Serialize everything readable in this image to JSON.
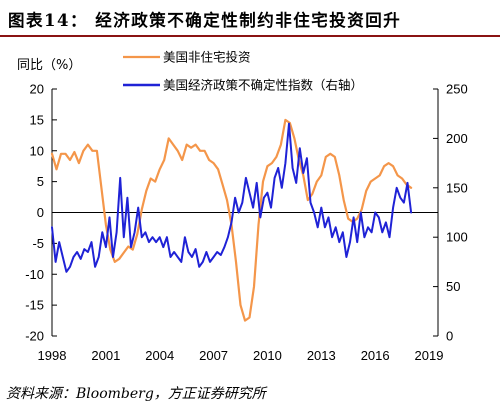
{
  "header": {
    "title": "图表14：  经济政策不确定性制约非住宅投资回升"
  },
  "source": "资料来源：Bloomberg，方正证券研究所",
  "chart_data": {
    "type": "line",
    "ylabel_left": "同比（%）",
    "y_left": {
      "ylim": [
        -20,
        20
      ],
      "ticks": [
        "-20",
        "-15",
        "-10",
        "-5",
        "0",
        "5",
        "10",
        "15",
        "20"
      ]
    },
    "y_right": {
      "ylim": [
        0,
        250
      ],
      "ticks": [
        "0",
        "50",
        "100",
        "150",
        "200",
        "250"
      ]
    },
    "x": {
      "xlim": [
        1998,
        2019.5
      ],
      "ticks": [
        "1998",
        "2001",
        "2004",
        "2007",
        "2010",
        "2013",
        "2016",
        "2019"
      ]
    },
    "legend_position": "top",
    "series": [
      {
        "name": "美国非住宅投资",
        "axis": "left",
        "color": "#f4964a",
        "points": [
          [
            1998.0,
            9.5
          ],
          [
            1998.25,
            7.0
          ],
          [
            1998.5,
            9.5
          ],
          [
            1998.75,
            9.5
          ],
          [
            1999.0,
            8.5
          ],
          [
            1999.25,
            9.8
          ],
          [
            1999.5,
            8.0
          ],
          [
            1999.75,
            10.0
          ],
          [
            2000.0,
            11.0
          ],
          [
            2000.25,
            10.0
          ],
          [
            2000.5,
            10.0
          ],
          [
            2000.75,
            4.0
          ],
          [
            2001.0,
            -2.0
          ],
          [
            2001.25,
            -6.0
          ],
          [
            2001.5,
            -8.0
          ],
          [
            2001.75,
            -7.5
          ],
          [
            2002.0,
            -6.5
          ],
          [
            2002.25,
            -5.5
          ],
          [
            2002.5,
            -6.0
          ],
          [
            2002.75,
            -3.5
          ],
          [
            2003.0,
            0.5
          ],
          [
            2003.25,
            3.5
          ],
          [
            2003.5,
            5.5
          ],
          [
            2003.75,
            5.0
          ],
          [
            2004.0,
            7.0
          ],
          [
            2004.25,
            8.5
          ],
          [
            2004.5,
            12.0
          ],
          [
            2004.75,
            11.0
          ],
          [
            2005.0,
            10.0
          ],
          [
            2005.25,
            8.5
          ],
          [
            2005.5,
            11.0
          ],
          [
            2005.75,
            10.5
          ],
          [
            2006.0,
            11.0
          ],
          [
            2006.25,
            10.0
          ],
          [
            2006.5,
            10.0
          ],
          [
            2006.75,
            8.5
          ],
          [
            2007.0,
            8.0
          ],
          [
            2007.25,
            7.0
          ],
          [
            2007.5,
            4.5
          ],
          [
            2007.75,
            2.0
          ],
          [
            2008.0,
            -2.0
          ],
          [
            2008.25,
            -8.0
          ],
          [
            2008.5,
            -15.0
          ],
          [
            2008.75,
            -17.5
          ],
          [
            2009.0,
            -17.0
          ],
          [
            2009.25,
            -12.0
          ],
          [
            2009.5,
            -2.0
          ],
          [
            2009.75,
            5.0
          ],
          [
            2010.0,
            7.5
          ],
          [
            2010.25,
            8.0
          ],
          [
            2010.5,
            9.0
          ],
          [
            2010.75,
            11.0
          ],
          [
            2011.0,
            15.0
          ],
          [
            2011.25,
            14.5
          ],
          [
            2011.5,
            12.0
          ],
          [
            2011.75,
            8.5
          ],
          [
            2012.0,
            6.0
          ],
          [
            2012.25,
            2.0
          ],
          [
            2012.5,
            3.0
          ],
          [
            2012.75,
            5.0
          ],
          [
            2013.0,
            6.0
          ],
          [
            2013.25,
            9.0
          ],
          [
            2013.5,
            9.5
          ],
          [
            2013.75,
            9.0
          ],
          [
            2014.0,
            6.0
          ],
          [
            2014.25,
            2.0
          ],
          [
            2014.5,
            -1.0
          ],
          [
            2014.75,
            -1.5
          ],
          [
            2015.0,
            -1.0
          ],
          [
            2015.25,
            0.5
          ],
          [
            2015.5,
            3.5
          ],
          [
            2015.75,
            5.0
          ],
          [
            2016.0,
            5.5
          ],
          [
            2016.25,
            6.0
          ],
          [
            2016.5,
            7.5
          ],
          [
            2016.75,
            8.0
          ],
          [
            2017.0,
            7.5
          ],
          [
            2017.25,
            6.0
          ],
          [
            2017.5,
            5.5
          ],
          [
            2017.75,
            4.5
          ],
          [
            2018.0,
            4.0
          ]
        ]
      },
      {
        "name": "美国经济政策不确定性指数（右轴）",
        "axis": "right",
        "color": "#1f22d6",
        "points": [
          [
            1998.0,
            110
          ],
          [
            1998.2,
            75
          ],
          [
            1998.4,
            95
          ],
          [
            1998.6,
            80
          ],
          [
            1998.8,
            65
          ],
          [
            1999.0,
            70
          ],
          [
            1999.2,
            80
          ],
          [
            1999.4,
            85
          ],
          [
            1999.6,
            78
          ],
          [
            1999.8,
            88
          ],
          [
            2000.0,
            85
          ],
          [
            2000.2,
            95
          ],
          [
            2000.4,
            70
          ],
          [
            2000.6,
            80
          ],
          [
            2000.8,
            105
          ],
          [
            2001.0,
            90
          ],
          [
            2001.2,
            120
          ],
          [
            2001.4,
            80
          ],
          [
            2001.6,
            105
          ],
          [
            2001.8,
            160
          ],
          [
            2002.0,
            100
          ],
          [
            2002.2,
            140
          ],
          [
            2002.4,
            90
          ],
          [
            2002.6,
            105
          ],
          [
            2002.8,
            130
          ],
          [
            2003.0,
            100
          ],
          [
            2003.2,
            105
          ],
          [
            2003.4,
            95
          ],
          [
            2003.6,
            100
          ],
          [
            2003.8,
            95
          ],
          [
            2004.0,
            100
          ],
          [
            2004.2,
            90
          ],
          [
            2004.4,
            100
          ],
          [
            2004.6,
            80
          ],
          [
            2004.8,
            85
          ],
          [
            2005.0,
            80
          ],
          [
            2005.2,
            75
          ],
          [
            2005.4,
            100
          ],
          [
            2005.6,
            85
          ],
          [
            2005.8,
            80
          ],
          [
            2006.0,
            88
          ],
          [
            2006.2,
            70
          ],
          [
            2006.4,
            75
          ],
          [
            2006.6,
            85
          ],
          [
            2006.8,
            75
          ],
          [
            2007.0,
            80
          ],
          [
            2007.2,
            85
          ],
          [
            2007.4,
            82
          ],
          [
            2007.6,
            90
          ],
          [
            2007.8,
            100
          ],
          [
            2008.0,
            115
          ],
          [
            2008.2,
            140
          ],
          [
            2008.4,
            125
          ],
          [
            2008.6,
            135
          ],
          [
            2008.8,
            160
          ],
          [
            2009.0,
            145
          ],
          [
            2009.2,
            130
          ],
          [
            2009.4,
            155
          ],
          [
            2009.6,
            120
          ],
          [
            2009.8,
            140
          ],
          [
            2010.0,
            145
          ],
          [
            2010.2,
            130
          ],
          [
            2010.4,
            160
          ],
          [
            2010.6,
            170
          ],
          [
            2010.8,
            150
          ],
          [
            2011.0,
            175
          ],
          [
            2011.2,
            215
          ],
          [
            2011.4,
            170
          ],
          [
            2011.6,
            155
          ],
          [
            2011.8,
            190
          ],
          [
            2012.0,
            165
          ],
          [
            2012.2,
            180
          ],
          [
            2012.4,
            135
          ],
          [
            2012.6,
            125
          ],
          [
            2012.8,
            110
          ],
          [
            2013.0,
            130
          ],
          [
            2013.2,
            110
          ],
          [
            2013.4,
            120
          ],
          [
            2013.6,
            100
          ],
          [
            2013.8,
            110
          ],
          [
            2014.0,
            95
          ],
          [
            2014.2,
            105
          ],
          [
            2014.4,
            80
          ],
          [
            2014.6,
            95
          ],
          [
            2014.8,
            120
          ],
          [
            2015.0,
            95
          ],
          [
            2015.2,
            125
          ],
          [
            2015.4,
            100
          ],
          [
            2015.6,
            110
          ],
          [
            2015.8,
            105
          ],
          [
            2016.0,
            125
          ],
          [
            2016.2,
            120
          ],
          [
            2016.4,
            105
          ],
          [
            2016.6,
            115
          ],
          [
            2016.8,
            100
          ],
          [
            2017.0,
            130
          ],
          [
            2017.2,
            150
          ],
          [
            2017.4,
            140
          ],
          [
            2017.6,
            135
          ],
          [
            2017.8,
            155
          ],
          [
            2018.0,
            125
          ]
        ]
      }
    ]
  }
}
